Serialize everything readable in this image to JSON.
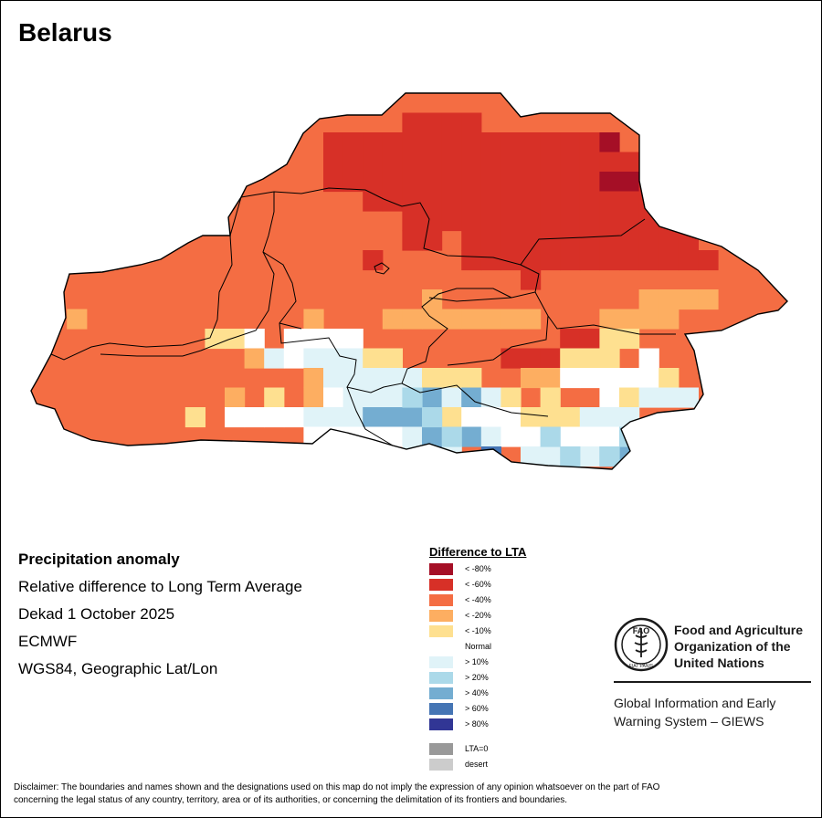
{
  "map": {
    "title": "Belarus",
    "region": "Belarus",
    "colors": {
      "lt_minus80": "#a50f26",
      "lt_minus60": "#d73027",
      "lt_minus40": "#f46d43",
      "lt_minus20": "#fdae61",
      "lt_minus10": "#fee090",
      "normal": "#ffffff",
      "gt10": "#e0f3f8",
      "gt20": "#abd9e9",
      "gt40": "#74add1",
      "gt60": "#4575b4",
      "gt80": "#313695",
      "lta0": "#999999",
      "desert": "#cccccc"
    }
  },
  "info": {
    "heading": "Precipitation anomaly",
    "subtitle": "Relative difference to Long Term Average",
    "period": "Dekad 1 October 2025",
    "source": "ECMWF",
    "projection": "WGS84, Geographic Lat/Lon"
  },
  "legend": {
    "title": "Difference to LTA",
    "items": [
      {
        "label": "< -80%",
        "color": "#a50f26"
      },
      {
        "label": "< -60%",
        "color": "#d73027"
      },
      {
        "label": "< -40%",
        "color": "#f46d43"
      },
      {
        "label": "< -20%",
        "color": "#fdae61"
      },
      {
        "label": "< -10%",
        "color": "#fee090"
      },
      {
        "label": "Normal",
        "color": "#ffffff"
      },
      {
        "label": "> 10%",
        "color": "#e0f3f8"
      },
      {
        "label": "> 20%",
        "color": "#abd9e9"
      },
      {
        "label": "> 40%",
        "color": "#74add1"
      },
      {
        "label": "> 60%",
        "color": "#4575b4"
      },
      {
        "label": "> 80%",
        "color": "#313695"
      }
    ],
    "extra": [
      {
        "label": "LTA=0",
        "color": "#999999"
      },
      {
        "label": "desert",
        "color": "#cccccc"
      }
    ]
  },
  "fao": {
    "name_line1": "Food and Agriculture",
    "name_line2": "Organization of the",
    "name_line3": "United Nations",
    "logo_letters": "FAO",
    "motto": "FIAT PANIS",
    "system_line1": "Global Information and Early",
    "system_line2": "Warning System – GIEWS"
  },
  "disclaimer": {
    "line1": "Disclaimer: The boundaries and names shown and the designations used on this map do not imply the expression of any opinion whatsoever on the part of FAO",
    "line2": "concerning the legal status of any country, territory, area or of its authorities, or concerning the delimitation of its frontiers and boundaries."
  }
}
